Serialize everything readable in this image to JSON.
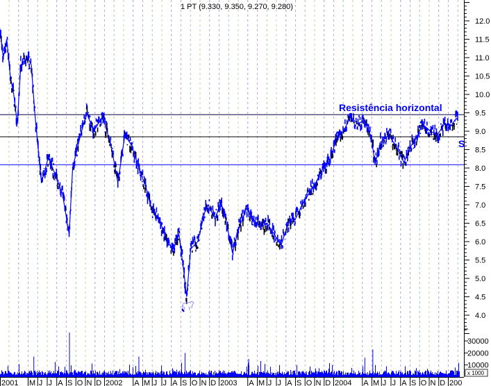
{
  "chart_data": {
    "type": "line",
    "title": "1 PT (9.330, 9.350, 9.270, 9.280)",
    "annotation": "Resistência horizontal",
    "annotation_partial": "S",
    "ylim": [
      3.6,
      12.5
    ],
    "yticks": [
      "4.0",
      "4.5",
      "5.0",
      "5.5",
      "6.0",
      "6.5",
      "7.0",
      "7.5",
      "8.0",
      "8.5",
      "9.0",
      "9.5",
      "10.0",
      "10.5",
      "11.0",
      "11.5",
      "12.0"
    ],
    "volume_ticks": [
      "10000",
      "20000",
      "30000"
    ],
    "volume_unit": "x 1000",
    "month_labels": [
      {
        "date": "2001-01-01",
        "label": "2001"
      },
      {
        "date": "2001-05-01",
        "label": "M"
      },
      {
        "date": "2001-06-01",
        "label": "J"
      },
      {
        "date": "2001-07-01",
        "label": "J"
      },
      {
        "date": "2001-08-01",
        "label": "A"
      },
      {
        "date": "2001-09-01",
        "label": "S"
      },
      {
        "date": "2001-10-01",
        "label": "O"
      },
      {
        "date": "2001-11-01",
        "label": "N"
      },
      {
        "date": "2001-12-01",
        "label": "D"
      },
      {
        "date": "2002-01-01",
        "label": "2002"
      },
      {
        "date": "2002-04-01",
        "label": "A"
      },
      {
        "date": "2002-05-01",
        "label": "M"
      },
      {
        "date": "2002-06-01",
        "label": "J"
      },
      {
        "date": "2002-07-01",
        "label": "J"
      },
      {
        "date": "2002-08-01",
        "label": "A"
      },
      {
        "date": "2002-09-01",
        "label": "S"
      },
      {
        "date": "2002-10-01",
        "label": "O"
      },
      {
        "date": "2002-11-01",
        "label": "N"
      },
      {
        "date": "2002-12-01",
        "label": "D"
      },
      {
        "date": "2003-01-01",
        "label": "2003"
      },
      {
        "date": "2003-04-01",
        "label": "A"
      },
      {
        "date": "2003-05-01",
        "label": "M"
      },
      {
        "date": "2003-06-01",
        "label": "J"
      },
      {
        "date": "2003-07-01",
        "label": "J"
      },
      {
        "date": "2003-08-01",
        "label": "A"
      },
      {
        "date": "2003-09-01",
        "label": "S"
      },
      {
        "date": "2003-10-01",
        "label": "O"
      },
      {
        "date": "2003-11-01",
        "label": "N"
      },
      {
        "date": "2003-12-01",
        "label": "D"
      },
      {
        "date": "2004-01-01",
        "label": "2004"
      },
      {
        "date": "2004-04-01",
        "label": "A"
      },
      {
        "date": "2004-05-01",
        "label": "M"
      },
      {
        "date": "2004-06-01",
        "label": "J"
      },
      {
        "date": "2004-07-01",
        "label": "J"
      },
      {
        "date": "2004-08-01",
        "label": "A"
      },
      {
        "date": "2004-09-01",
        "label": "S"
      },
      {
        "date": "2004-10-01",
        "label": "O"
      },
      {
        "date": "2004-11-01",
        "label": "N"
      },
      {
        "date": "2004-12-01",
        "label": "D"
      },
      {
        "date": "2005-01-01",
        "label": "200"
      }
    ],
    "horizontal_lines": [
      {
        "value": 9.45,
        "color": "#000040"
      },
      {
        "value": 8.85,
        "color": "#000000"
      },
      {
        "value": 8.09,
        "color": "#0000ff"
      }
    ],
    "price": [
      [
        "2001-02-03",
        11.8
      ],
      [
        "2001-02-14",
        11.0
      ],
      [
        "2001-02-25",
        11.5
      ],
      [
        "2001-03-06",
        10.5
      ],
      [
        "2001-03-17",
        10.0
      ],
      [
        "2001-03-28",
        9.2
      ],
      [
        "2001-04-09",
        10.8
      ],
      [
        "2001-05-01",
        11.0
      ],
      [
        "2001-05-12",
        10.8
      ],
      [
        "2001-05-23",
        9.5
      ],
      [
        "2001-06-14",
        7.6
      ],
      [
        "2001-07-06",
        8.3
      ],
      [
        "2001-07-28",
        7.8
      ],
      [
        "2001-08-20",
        7.3
      ],
      [
        "2001-09-11",
        6.2
      ],
      [
        "2001-09-22",
        8.0
      ],
      [
        "2001-10-14",
        8.8
      ],
      [
        "2001-11-06",
        9.5
      ],
      [
        "2001-11-28",
        9.0
      ],
      [
        "2001-12-26",
        9.4
      ],
      [
        "2002-01-23",
        8.6
      ],
      [
        "2002-02-14",
        7.6
      ],
      [
        "2002-03-06",
        8.9
      ],
      [
        "2002-03-28",
        8.6
      ],
      [
        "2002-04-20",
        8.0
      ],
      [
        "2002-05-11",
        7.5
      ],
      [
        "2002-06-03",
        6.8
      ],
      [
        "2002-06-25",
        6.6
      ],
      [
        "2002-07-17",
        6.0
      ],
      [
        "2002-08-09",
        5.8
      ],
      [
        "2002-08-26",
        6.2
      ],
      [
        "2002-09-11",
        5.2
      ],
      [
        "2002-09-20",
        4.5
      ],
      [
        "2002-10-03",
        5.8
      ],
      [
        "2002-10-25",
        6.0
      ],
      [
        "2002-11-17",
        6.8
      ],
      [
        "2002-11-28",
        7.0
      ],
      [
        "2002-12-20",
        6.6
      ],
      [
        "2003-01-07",
        7.1
      ],
      [
        "2003-01-23",
        6.6
      ],
      [
        "2003-02-14",
        5.7
      ],
      [
        "2003-03-06",
        6.4
      ],
      [
        "2003-03-28",
        6.9
      ],
      [
        "2003-04-20",
        6.6
      ],
      [
        "2003-05-11",
        6.4
      ],
      [
        "2003-06-03",
        6.5
      ],
      [
        "2003-06-25",
        6.2
      ],
      [
        "2003-07-17",
        5.9
      ],
      [
        "2003-08-09",
        6.5
      ],
      [
        "2003-09-01",
        6.6
      ],
      [
        "2003-09-23",
        7.0
      ],
      [
        "2003-10-14",
        7.3
      ],
      [
        "2003-11-06",
        7.6
      ],
      [
        "2003-11-28",
        8.0
      ],
      [
        "2003-12-20",
        8.2
      ],
      [
        "2004-01-11",
        8.8
      ],
      [
        "2004-02-03",
        9.0
      ],
      [
        "2004-02-25",
        9.4
      ],
      [
        "2004-03-17",
        9.2
      ],
      [
        "2004-04-09",
        9.3
      ],
      [
        "2004-05-01",
        8.8
      ],
      [
        "2004-05-12",
        8.1
      ],
      [
        "2004-05-29",
        8.7
      ],
      [
        "2004-06-25",
        8.9
      ],
      [
        "2004-07-17",
        8.6
      ],
      [
        "2004-08-13",
        8.15
      ],
      [
        "2004-09-05",
        8.6
      ],
      [
        "2004-09-27",
        8.9
      ],
      [
        "2004-10-10",
        9.2
      ],
      [
        "2004-11-06",
        9.0
      ],
      [
        "2004-11-28",
        8.9
      ],
      [
        "2004-12-20",
        9.2
      ],
      [
        "2005-01-11",
        9.15
      ],
      [
        "2005-01-27",
        9.35
      ],
      [
        "2005-02-03",
        9.28
      ]
    ],
    "volume_spikes": [
      [
        "2001-09-12",
        37000
      ],
      [
        "2001-05-20",
        17000
      ],
      [
        "2002-04-20",
        17000
      ],
      [
        "2002-09-15",
        20000
      ],
      [
        "2004-05-05",
        23000
      ],
      [
        "2003-04-05",
        15000
      ],
      [
        "2004-04-10",
        16000
      ]
    ],
    "colors": {
      "price": "#0000ff",
      "price_down": "#000000",
      "volume": "#0000ff",
      "annotation": "#0000ff"
    }
  }
}
